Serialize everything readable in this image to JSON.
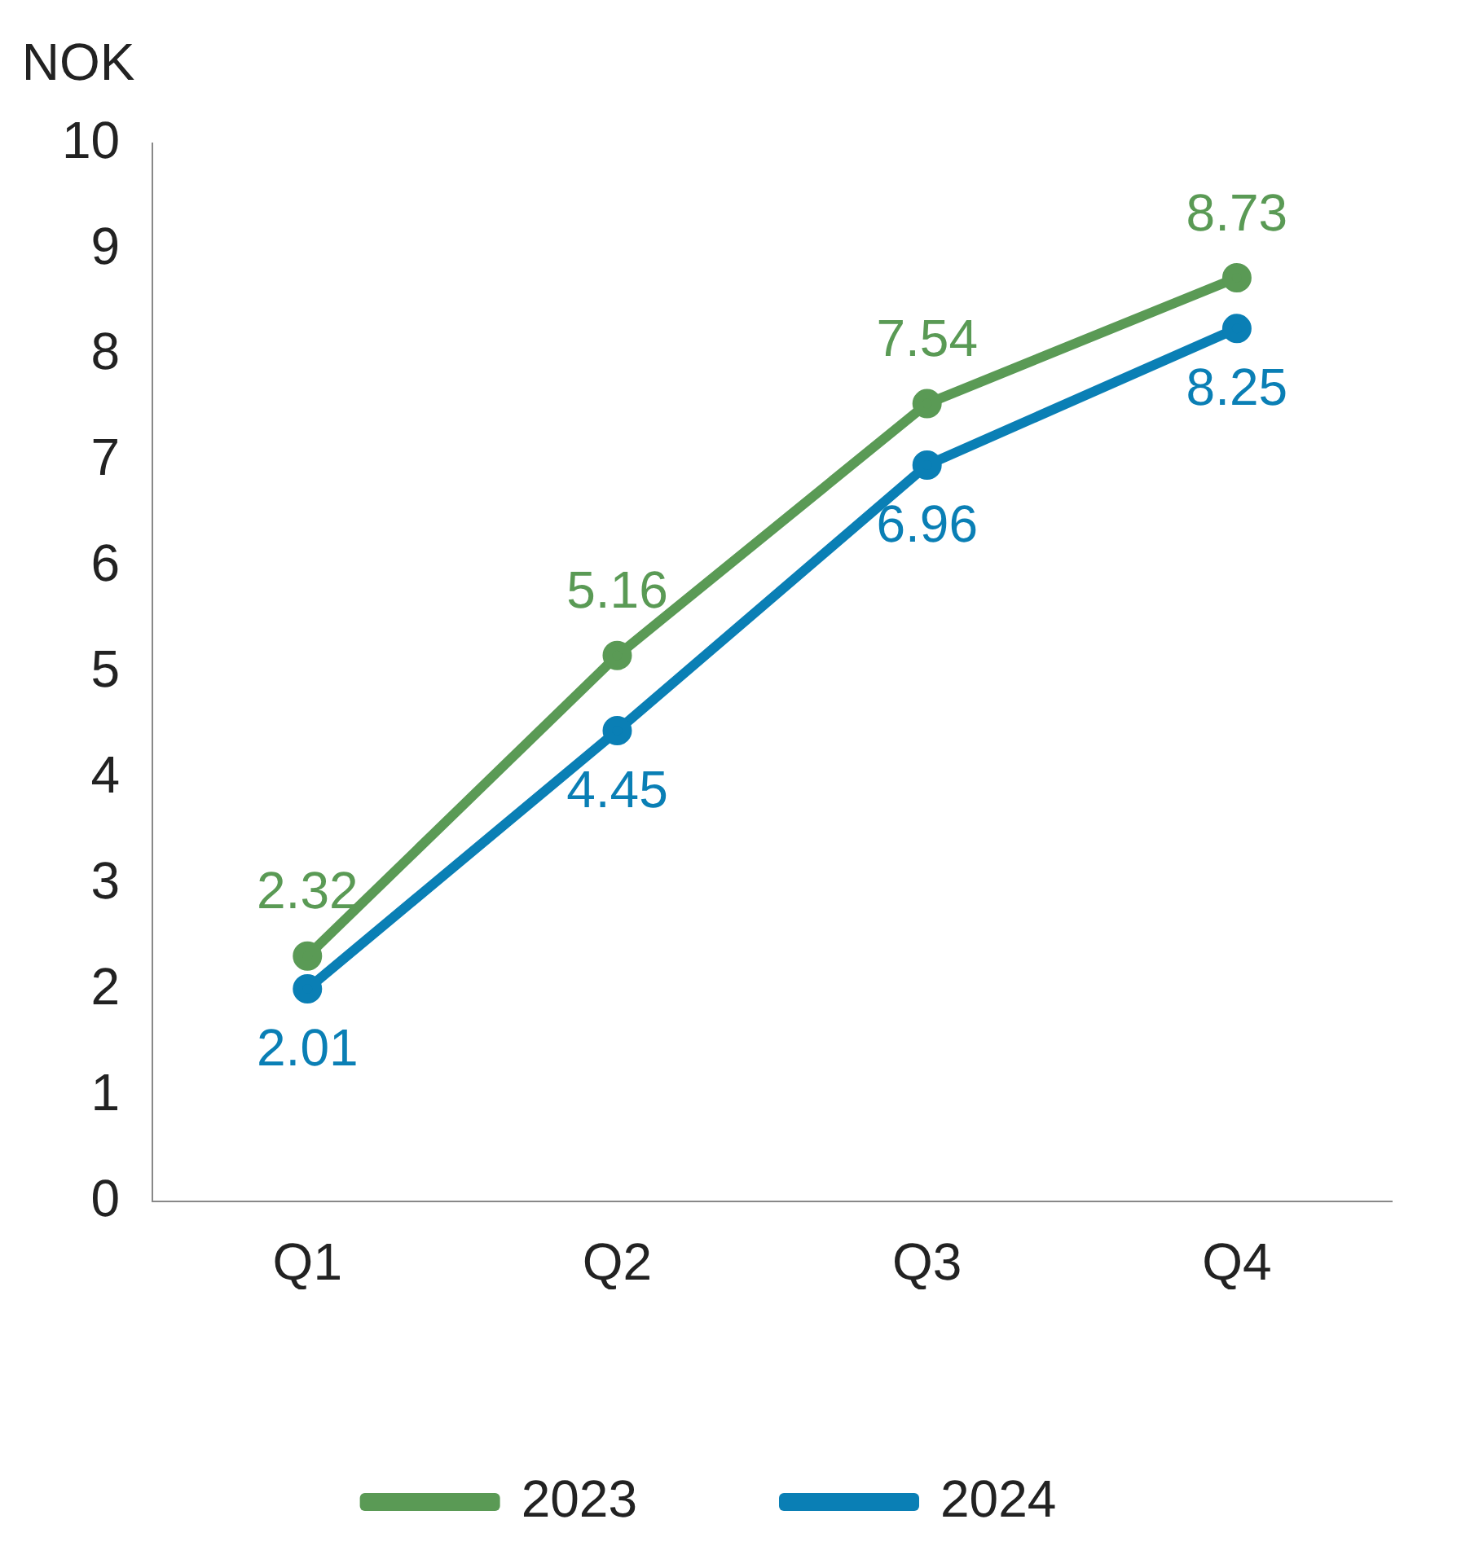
{
  "chart_data": {
    "type": "line",
    "ylabel": "NOK",
    "categories": [
      "Q1",
      "Q2",
      "Q3",
      "Q4"
    ],
    "series": [
      {
        "name": "2023",
        "color": "#5a9a55",
        "values": [
          2.32,
          5.16,
          7.54,
          8.73
        ]
      },
      {
        "name": "2024",
        "color": "#0a7fb5",
        "values": [
          2.01,
          4.45,
          6.96,
          8.25
        ]
      }
    ],
    "ylim": [
      0,
      10
    ],
    "yticks": [
      0,
      1,
      2,
      3,
      4,
      5,
      6,
      7,
      8,
      9,
      10
    ],
    "grid": false,
    "legend": "bottom",
    "marker": "circle",
    "line_style": "solid",
    "data_labels": true
  }
}
